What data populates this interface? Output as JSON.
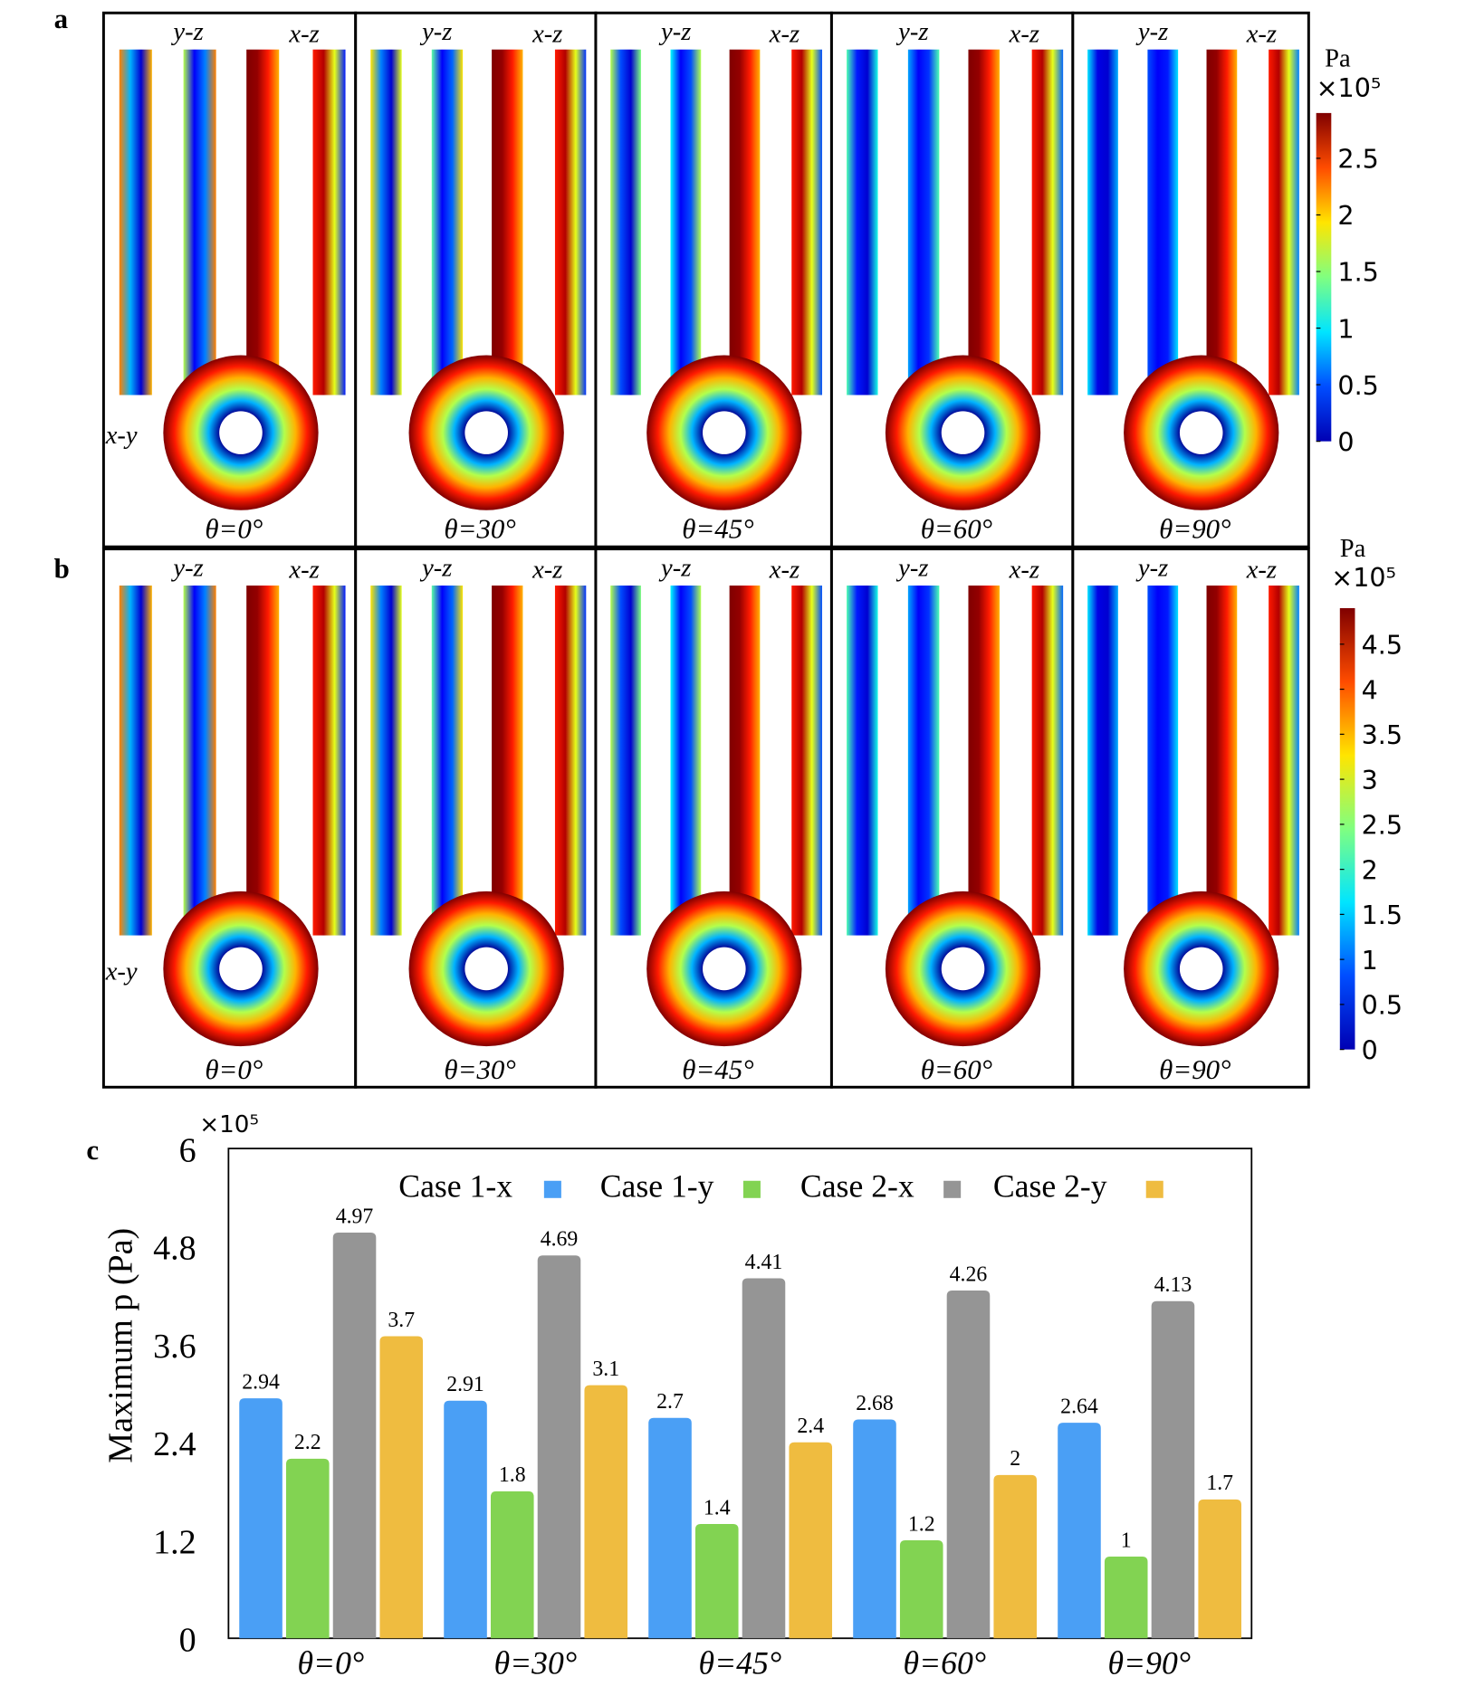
{
  "panel_labels": {
    "a": "a",
    "b": "b",
    "c": "c"
  },
  "view_labels": {
    "yz": "y-z",
    "xz": "x-z",
    "xy": "x-y"
  },
  "angles": [
    "θ=0°",
    "θ=30°",
    "θ=45°",
    "θ=60°",
    "θ=90°"
  ],
  "colorbar_a": {
    "unit": "Pa",
    "scale": "×10⁵",
    "ticks": [
      "0",
      "0.5",
      "1",
      "1.5",
      "2",
      "2.5"
    ],
    "tick_values": [
      0,
      0.5,
      1,
      1.5,
      2,
      2.5
    ],
    "max": 2.9,
    "colormap": "jet"
  },
  "colorbar_b": {
    "unit": "Pa",
    "scale": "×10⁵",
    "ticks": [
      "0",
      "0.5",
      "1",
      "1.5",
      "2",
      "2.5",
      "3",
      "3.5",
      "4",
      "4.5"
    ],
    "tick_values": [
      0,
      0.5,
      1,
      1.5,
      2,
      2.5,
      3,
      3.5,
      4,
      4.5
    ],
    "max": 4.9,
    "colormap": "jet"
  },
  "chart_data": {
    "type": "bar",
    "title": "",
    "xlabel": "",
    "ylabel": "Maximum p (Pa)",
    "y_scale_label": "×10⁵",
    "ylim": [
      0,
      6
    ],
    "yticks": [
      "0",
      "1.2",
      "2.4",
      "3.6",
      "4.8",
      "6"
    ],
    "ytick_values": [
      0,
      1.2,
      2.4,
      3.6,
      4.8,
      6
    ],
    "grid": false,
    "legend_position": "top",
    "categories": [
      "θ=0°",
      "θ=30°",
      "θ=45°",
      "θ=60°",
      "θ=90°"
    ],
    "series": [
      {
        "name": "Case 1-x",
        "color": "#4a9ff5",
        "values": [
          2.94,
          2.91,
          2.7,
          2.68,
          2.64
        ],
        "labels": [
          "2.94",
          "2.91",
          "2.7",
          "2.68",
          "2.64"
        ]
      },
      {
        "name": "Case 1-y",
        "color": "#82d352",
        "values": [
          2.2,
          1.8,
          1.4,
          1.2,
          1
        ],
        "labels": [
          "2.2",
          "1.8",
          "1.4",
          "1.2",
          "1"
        ]
      },
      {
        "name": "Case 2-x",
        "color": "#959595",
        "values": [
          4.97,
          4.69,
          4.41,
          4.26,
          4.13
        ],
        "labels": [
          "4.97",
          "4.69",
          "4.41",
          "4.26",
          "4.13"
        ]
      },
      {
        "name": "Case 2-y",
        "color": "#efbc40",
        "values": [
          3.7,
          3.1,
          2.4,
          2,
          1.7
        ],
        "labels": [
          "3.7",
          "3.1",
          "2.4",
          "2",
          "1.7"
        ]
      }
    ]
  }
}
